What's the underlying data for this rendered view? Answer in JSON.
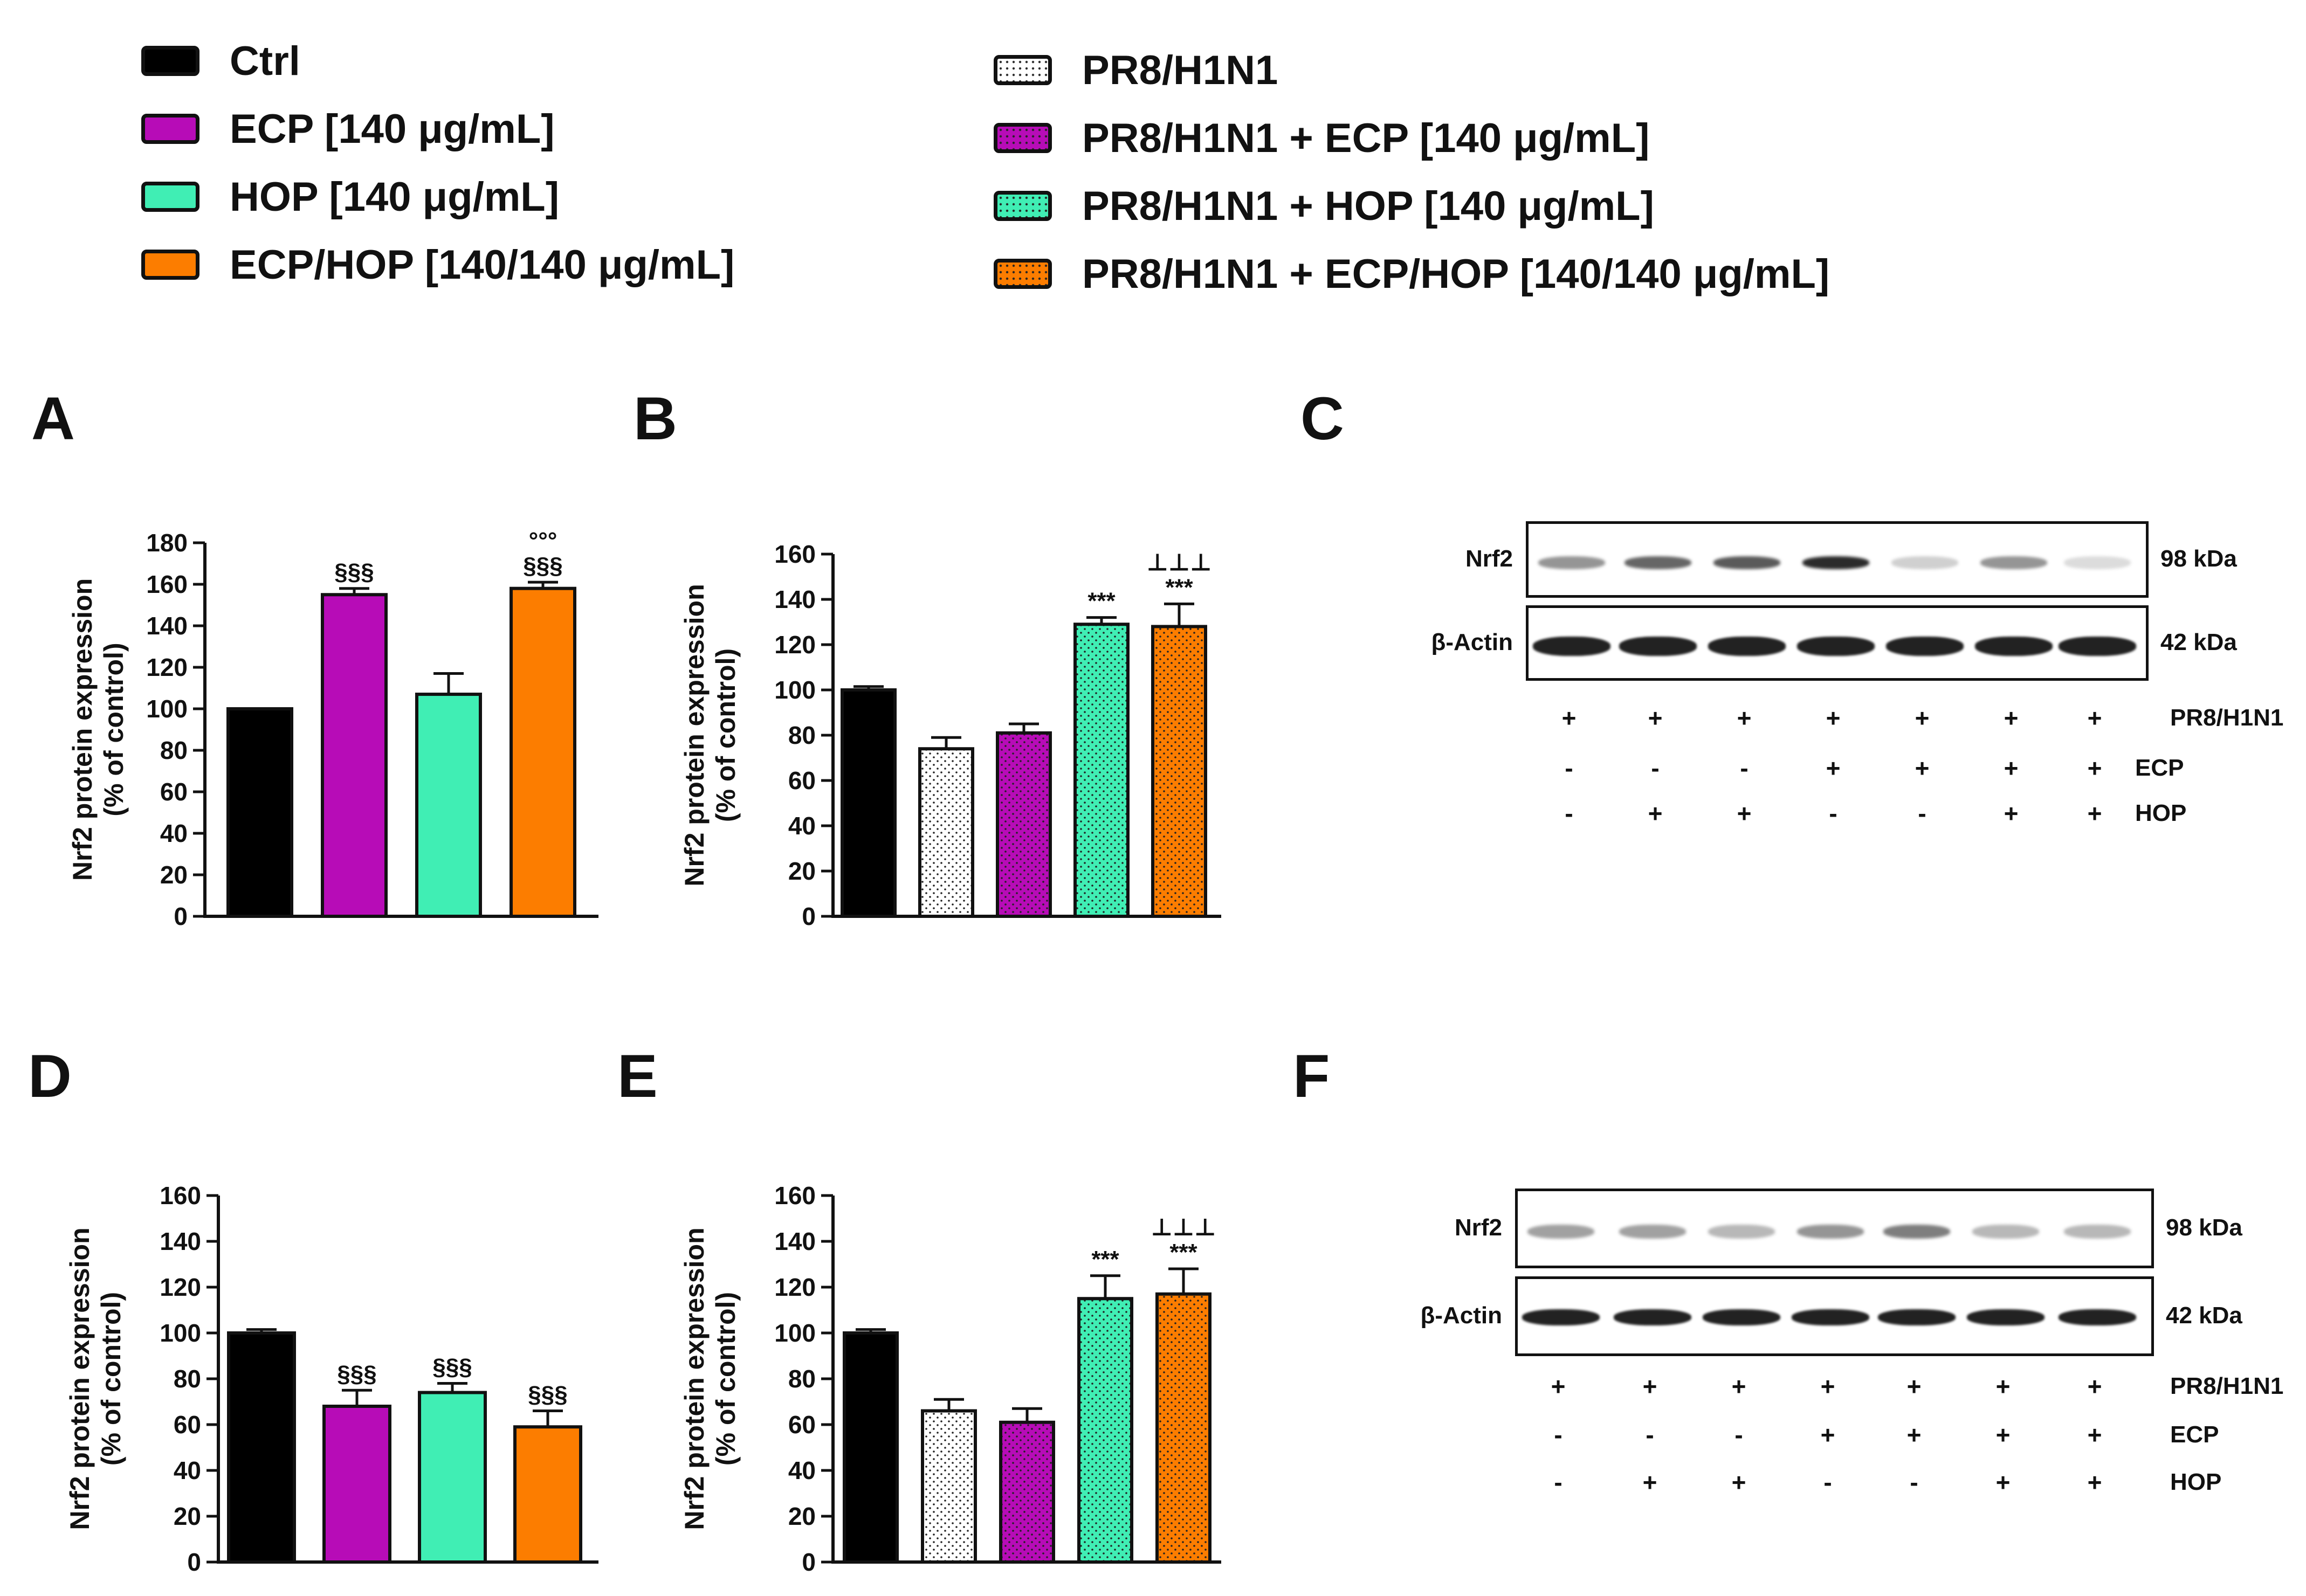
{
  "legend": {
    "left": [
      {
        "label": "Ctrl",
        "color": "#000000",
        "pattern": "solid"
      },
      {
        "label": "ECP [140 μg/mL]",
        "color": "#b70cb7",
        "pattern": "solid"
      },
      {
        "label": "HOP [140 μg/mL]",
        "color": "#40eeb4",
        "pattern": "solid"
      },
      {
        "label": "ECP/HOP [140/140 μg/mL]",
        "color": "#fc7d00",
        "pattern": "solid"
      }
    ],
    "right": [
      {
        "label": "PR8/H1N1",
        "color": "#ffffff",
        "pattern": "dotted"
      },
      {
        "label": "PR8/H1N1 + ECP [140 μg/mL]",
        "color": "#b70cb7",
        "pattern": "dotted"
      },
      {
        "label": "PR8/H1N1 + HOP [140 μg/mL]",
        "color": "#40eeb4",
        "pattern": "dotted"
      },
      {
        "label": "PR8/H1N1 + ECP/HOP [140/140 μg/mL]",
        "color": "#fc7d00",
        "pattern": "dotted"
      }
    ]
  },
  "panels": {
    "A": "A",
    "B": "B",
    "C": "C",
    "D": "D",
    "E": "E",
    "F": "F"
  },
  "chart_data": [
    {
      "panel": "A",
      "type": "bar",
      "ylabel": "Nrf2 protein expression (% of control)",
      "ylabel_line1": "Nrf2 protein expression",
      "ylabel_line2": "(% of control)",
      "ylim": [
        0,
        180
      ],
      "yticks": [
        0,
        20,
        40,
        60,
        80,
        100,
        120,
        140,
        160,
        180
      ],
      "bars": [
        {
          "group": "Ctrl",
          "value": 100,
          "error": 0,
          "color": "#000000",
          "pattern": "solid",
          "annotations": []
        },
        {
          "group": "ECP [140 μg/mL]",
          "value": 155,
          "error": 3,
          "color": "#b70cb7",
          "pattern": "solid",
          "annotations": [
            "§§§"
          ]
        },
        {
          "group": "HOP [140 μg/mL]",
          "value": 107,
          "error": 10,
          "color": "#40eeb4",
          "pattern": "solid",
          "annotations": []
        },
        {
          "group": "ECP/HOP [140/140 μg/mL]",
          "value": 158,
          "error": 3,
          "color": "#fc7d00",
          "pattern": "solid",
          "annotations": [
            "§§§",
            "°°°"
          ]
        }
      ]
    },
    {
      "panel": "B",
      "type": "bar",
      "ylabel": "Nrf2 protein expression (% of control)",
      "ylabel_line1": "Nrf2 protein expression",
      "ylabel_line2": "(% of control)",
      "ylim": [
        0,
        160
      ],
      "yticks": [
        0,
        20,
        40,
        60,
        80,
        100,
        120,
        140,
        160
      ],
      "bars": [
        {
          "group": "Ctrl",
          "value": 100,
          "error": 1.5,
          "color": "#000000",
          "pattern": "solid",
          "annotations": []
        },
        {
          "group": "PR8/H1N1",
          "value": 74,
          "error": 5,
          "color": "#ffffff",
          "pattern": "dotted",
          "annotations": []
        },
        {
          "group": "PR8/H1N1 + ECP [140 μg/mL]",
          "value": 81,
          "error": 4,
          "color": "#b70cb7",
          "pattern": "dotted",
          "annotations": []
        },
        {
          "group": "PR8/H1N1 + HOP [140 μg/mL]",
          "value": 129,
          "error": 3,
          "color": "#40eeb4",
          "pattern": "dotted",
          "annotations": [
            "***"
          ]
        },
        {
          "group": "PR8/H1N1 + ECP/HOP [140/140 μg/mL]",
          "value": 128,
          "error": 10,
          "color": "#fc7d00",
          "pattern": "dotted",
          "annotations": [
            "***",
            "⊥⊥⊥"
          ]
        }
      ]
    },
    {
      "panel": "D",
      "type": "bar",
      "ylabel": "Nrf2 protein expression (% of control)",
      "ylabel_line1": "Nrf2 protein expression",
      "ylabel_line2": "(% of control)",
      "ylim": [
        0,
        160
      ],
      "yticks": [
        0,
        20,
        40,
        60,
        80,
        100,
        120,
        140,
        160
      ],
      "bars": [
        {
          "group": "Ctrl",
          "value": 100,
          "error": 1.5,
          "color": "#000000",
          "pattern": "solid",
          "annotations": []
        },
        {
          "group": "ECP [140 μg/mL]",
          "value": 68,
          "error": 7,
          "color": "#b70cb7",
          "pattern": "solid",
          "annotations": [
            "§§§"
          ]
        },
        {
          "group": "HOP [140 μg/mL]",
          "value": 74,
          "error": 4,
          "color": "#40eeb4",
          "pattern": "solid",
          "annotations": [
            "§§§"
          ]
        },
        {
          "group": "ECP/HOP [140/140 μg/mL]",
          "value": 59,
          "error": 7,
          "color": "#fc7d00",
          "pattern": "solid",
          "annotations": [
            "§§§"
          ]
        }
      ]
    },
    {
      "panel": "E",
      "type": "bar",
      "ylabel": "Nrf2 protein expression (% of control)",
      "ylabel_line1": "Nrf2 protein expression",
      "ylabel_line2": "(% of control)",
      "ylim": [
        0,
        160
      ],
      "yticks": [
        0,
        20,
        40,
        60,
        80,
        100,
        120,
        140,
        160
      ],
      "bars": [
        {
          "group": "Ctrl",
          "value": 100,
          "error": 1.5,
          "color": "#000000",
          "pattern": "solid",
          "annotations": []
        },
        {
          "group": "PR8/H1N1",
          "value": 66,
          "error": 5,
          "color": "#ffffff",
          "pattern": "dotted",
          "annotations": []
        },
        {
          "group": "PR8/H1N1 + ECP [140 μg/mL]",
          "value": 61,
          "error": 6,
          "color": "#b70cb7",
          "pattern": "dotted",
          "annotations": []
        },
        {
          "group": "PR8/H1N1 + HOP [140 μg/mL]",
          "value": 115,
          "error": 10,
          "color": "#40eeb4",
          "pattern": "dotted",
          "annotations": [
            "***"
          ]
        },
        {
          "group": "PR8/H1N1 + ECP/HOP [140/140 μg/mL]",
          "value": 117,
          "error": 11,
          "color": "#fc7d00",
          "pattern": "dotted",
          "annotations": [
            "***",
            "⊥⊥⊥"
          ]
        }
      ]
    }
  ],
  "blots": {
    "C": {
      "rows": [
        "Nrf2",
        "β-Actin"
      ],
      "weights": [
        "98 kDa",
        "42 kDa"
      ],
      "conditions": [
        {
          "label": "PR8/H1N1",
          "signs": [
            "+",
            "+",
            "+",
            "+",
            "+",
            "+",
            "+"
          ]
        },
        {
          "label": "ECP",
          "signs": [
            "-",
            "-",
            "-",
            "+",
            "+",
            "+",
            "+"
          ]
        },
        {
          "label": "HOP",
          "signs": [
            "-",
            "+",
            "+",
            "-",
            "-",
            "+",
            "+"
          ]
        }
      ]
    },
    "F": {
      "rows": [
        "Nrf2",
        "β-Actin"
      ],
      "weights": [
        "98 kDa",
        "42 kDa"
      ],
      "conditions": [
        {
          "label": "PR8/H1N1",
          "signs": [
            "+",
            "+",
            "+",
            "+",
            "+",
            "+",
            "+"
          ]
        },
        {
          "label": "ECP",
          "signs": [
            "-",
            "-",
            "-",
            "+",
            "+",
            "+",
            "+"
          ]
        },
        {
          "label": "HOP",
          "signs": [
            "-",
            "+",
            "+",
            "-",
            "-",
            "+",
            "+"
          ]
        }
      ]
    }
  }
}
